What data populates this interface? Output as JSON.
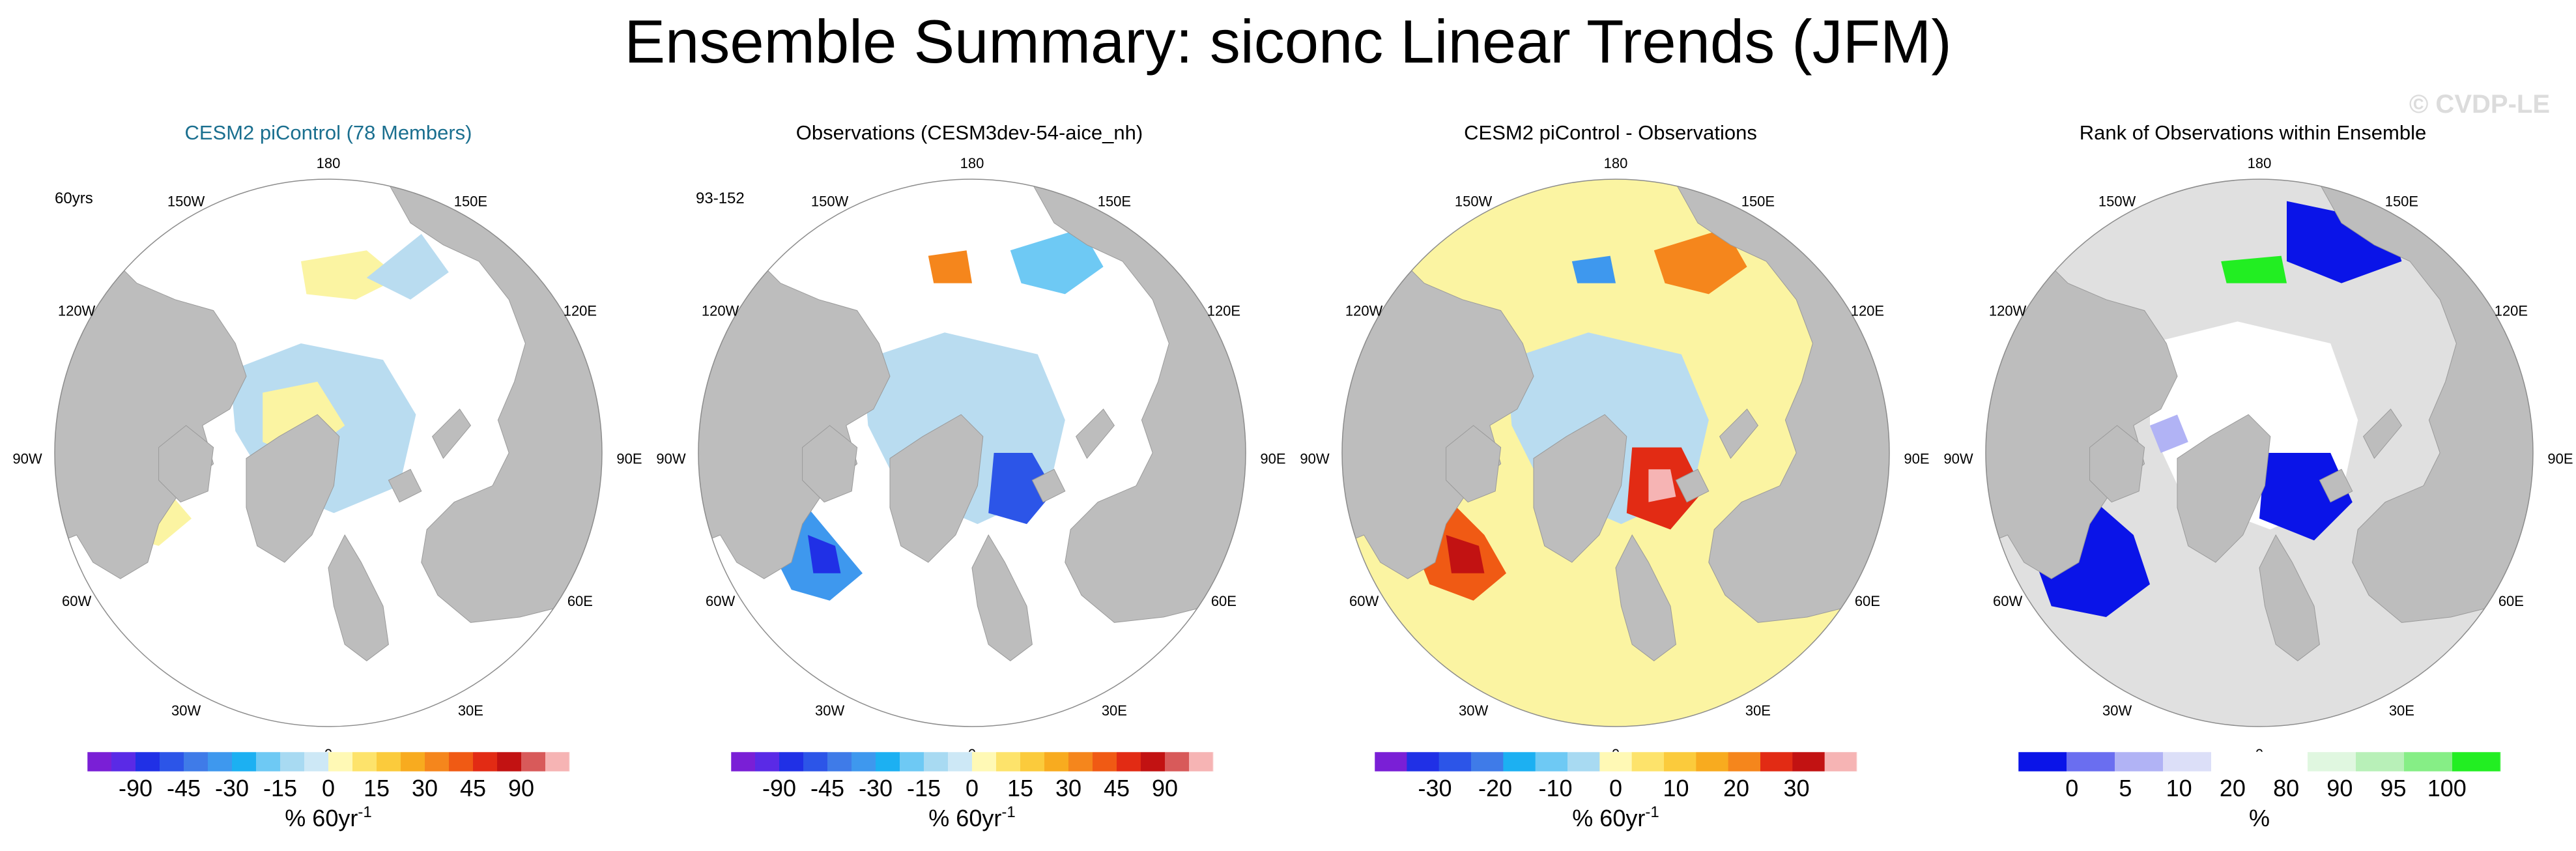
{
  "title": "Ensemble Summary: siconc Linear Trends (JFM)",
  "watermark": "© CVDP-LE",
  "colors": {
    "land": "#bdbdbd",
    "ocean_white": "#ffffff",
    "light_blue": "#b9dcf0",
    "pale_yellow": "#fbf4a2"
  },
  "chart_data": [
    {
      "type": "heatmap",
      "projection": "north-polar-stereographic",
      "title": "CESM2 piControl (78 Members)",
      "title_color": "#1a6f8f",
      "corner_label": "60yrs",
      "lon_labels": [
        "180",
        "150W",
        "150E",
        "120W",
        "120E",
        "90W",
        "90E",
        "60W",
        "60E",
        "30W",
        "30E",
        "0"
      ],
      "colorbar": {
        "colors": [
          "#7a1fd6",
          "#5a2ae6",
          "#2030e6",
          "#2c55e8",
          "#3f7be8",
          "#3e98ee",
          "#1cb0f2",
          "#6ec9f4",
          "#a8daf2",
          "#cde8f6",
          "#fff9b5",
          "#fde36b",
          "#fbcb3c",
          "#f8ab1f",
          "#f5861c",
          "#f05a14",
          "#e22b14",
          "#c21212",
          "#d85a5a",
          "#f6b4b4"
        ],
        "tick_labels": [
          "-90",
          "-45",
          "-30",
          "-15",
          "0",
          "15",
          "30",
          "45",
          "90"
        ],
        "unit_label": "% 60yr",
        "unit_superscript": "-1"
      }
    },
    {
      "type": "heatmap",
      "projection": "north-polar-stereographic",
      "title": "Observations (CESM3dev-54-aice_nh)",
      "title_color": "#000000",
      "corner_label": "93-152",
      "lon_labels": [
        "180",
        "150W",
        "150E",
        "120W",
        "120E",
        "90W",
        "90E",
        "60W",
        "60E",
        "30W",
        "30E",
        "0"
      ],
      "colorbar": {
        "colors": [
          "#7a1fd6",
          "#5a2ae6",
          "#2030e6",
          "#2c55e8",
          "#3f7be8",
          "#3e98ee",
          "#1cb0f2",
          "#6ec9f4",
          "#a8daf2",
          "#cde8f6",
          "#fff9b5",
          "#fde36b",
          "#fbcb3c",
          "#f8ab1f",
          "#f5861c",
          "#f05a14",
          "#e22b14",
          "#c21212",
          "#d85a5a",
          "#f6b4b4"
        ],
        "tick_labels": [
          "-90",
          "-45",
          "-30",
          "-15",
          "0",
          "15",
          "30",
          "45",
          "90"
        ],
        "unit_label": "% 60yr",
        "unit_superscript": "-1"
      }
    },
    {
      "type": "heatmap",
      "projection": "north-polar-stereographic",
      "title": "CESM2 piControl - Observations",
      "title_color": "#000000",
      "corner_label": "",
      "lon_labels": [
        "180",
        "150W",
        "150E",
        "120W",
        "120E",
        "90W",
        "90E",
        "60W",
        "60E",
        "30W",
        "30E",
        "0"
      ],
      "colorbar": {
        "colors": [
          "#7a1fd6",
          "#2030e6",
          "#2c55e8",
          "#3f7be8",
          "#1cb0f2",
          "#6ec9f4",
          "#a8daf2",
          "#fff9b5",
          "#fde36b",
          "#fbcb3c",
          "#f8ab1f",
          "#f5861c",
          "#e22b14",
          "#c21212",
          "#f6b4b4"
        ],
        "tick_labels": [
          "-30",
          "-20",
          "-10",
          "0",
          "10",
          "20",
          "30"
        ],
        "unit_label": "% 60yr",
        "unit_superscript": "-1"
      }
    },
    {
      "type": "heatmap",
      "projection": "north-polar-stereographic",
      "title": "Rank of Observations within Ensemble",
      "title_color": "#000000",
      "corner_label": "",
      "lon_labels": [
        "180",
        "150W",
        "150E",
        "120W",
        "120E",
        "90W",
        "90E",
        "60W",
        "60E",
        "30W",
        "30E",
        "0"
      ],
      "colorbar": {
        "colors": [
          "#0a14e8",
          "#6a6ef0",
          "#b1b3f5",
          "#dcdff8",
          "#ffffff",
          "#ffffff",
          "#e0f7e0",
          "#b8f0b8",
          "#86ee86",
          "#22ee22"
        ],
        "tick_labels": [
          "0",
          "5",
          "10",
          "20",
          "80",
          "90",
          "95",
          "100"
        ],
        "unit_label": "%",
        "unit_superscript": ""
      }
    }
  ]
}
